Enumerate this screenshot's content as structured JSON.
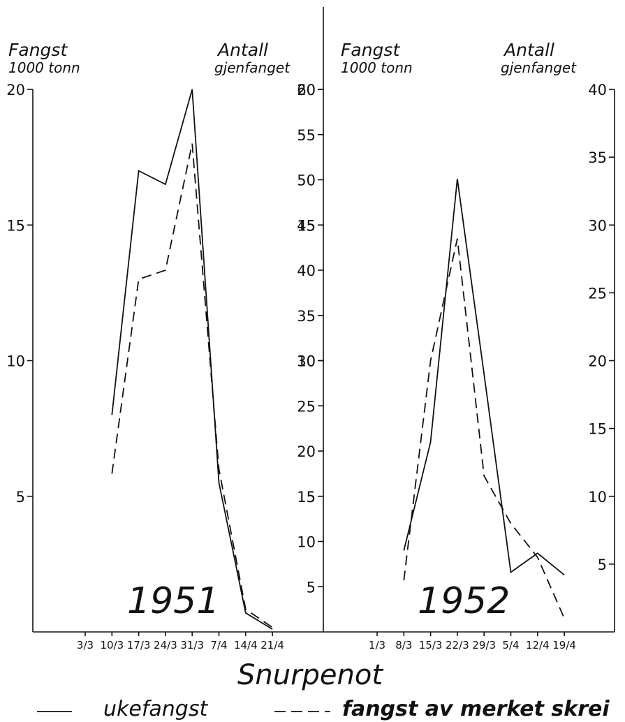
{
  "chart_data": [
    {
      "type": "line",
      "year_label": "1951",
      "left_axis_title": [
        "Fangst",
        "1000 tonn"
      ],
      "right_axis_title": [
        "Antall",
        "gjenfanget"
      ],
      "left_ticks": [
        "5",
        "10",
        "15",
        "20"
      ],
      "right_ticks": [
        "5",
        "10",
        "15",
        "20",
        "25",
        "30",
        "35",
        "40",
        "45",
        "50",
        "55",
        "60"
      ],
      "left_ylim": [
        0,
        20
      ],
      "right_ylim": [
        0,
        60
      ],
      "categories": [
        "3/3",
        "10/3",
        "17/3",
        "24/3",
        "31/3",
        "7/4",
        "14/4",
        "21/4"
      ],
      "series": [
        {
          "name": "ukefangst",
          "axis": "left",
          "style": "solid",
          "values": [
            null,
            8,
            17,
            16.5,
            20,
            5.5,
            0.7,
            0.1
          ]
        },
        {
          "name": "fangst av merket skrei",
          "axis": "right",
          "style": "dashed",
          "values": [
            null,
            17.5,
            39,
            40,
            54,
            18,
            2.5,
            0.5
          ]
        }
      ]
    },
    {
      "type": "line",
      "year_label": "1952",
      "left_axis_title": [
        "Fangst",
        "1000 tonn"
      ],
      "right_axis_title": [
        "Antall",
        "gjenfanget"
      ],
      "left_ticks": [
        "5",
        "10",
        "15",
        "20"
      ],
      "right_ticks": [
        "5",
        "10",
        "15",
        "20",
        "25",
        "30",
        "35",
        "40"
      ],
      "left_ylim": [
        0,
        20
      ],
      "right_ylim": [
        0,
        40
      ],
      "categories": [
        "1/3",
        "8/3",
        "15/3",
        "22/3",
        "29/3",
        "5/4",
        "12/4",
        "19/4"
      ],
      "series": [
        {
          "name": "ukefangst",
          "axis": "left",
          "style": "solid",
          "values": [
            null,
            3,
            7,
            16.7,
            9.5,
            2.2,
            2.9,
            2.1
          ]
        },
        {
          "name": "fangst av merket skrei",
          "axis": "right",
          "style": "dashed",
          "values": [
            null,
            3.8,
            20,
            29,
            11.5,
            8,
            5.5,
            1
          ]
        }
      ]
    }
  ],
  "footer": {
    "title": "Snurpenot",
    "legend": [
      {
        "label": "ukefangst",
        "style": "solid"
      },
      {
        "label": "fangst av merket skrei",
        "style": "dashed"
      }
    ]
  }
}
